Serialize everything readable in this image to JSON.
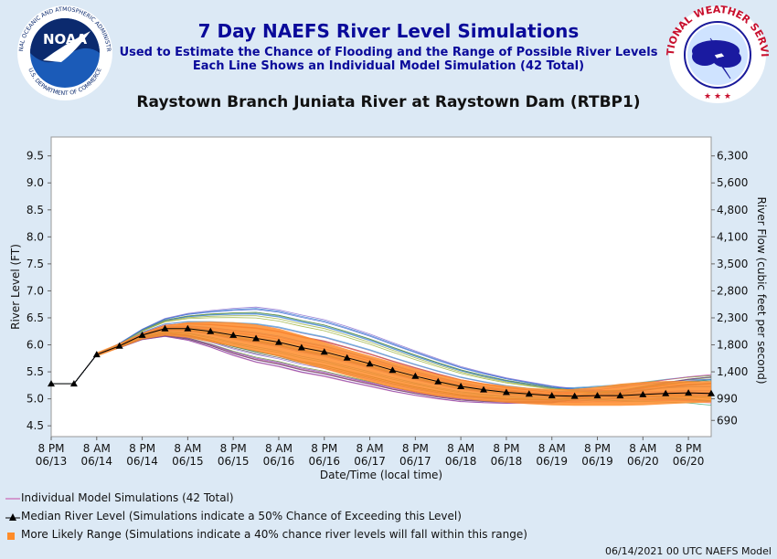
{
  "header": {
    "title": "7 Day NAEFS River Level Simulations",
    "subtitle1": "Used to Estimate the Chance of Flooding and the Range of Possible River Levels",
    "subtitle2": "Each Line Shows an Individual Model Simulation (42 Total)",
    "station": "Raystown Branch Juniata River at Raystown Dam (RTBP1)"
  },
  "logos": {
    "noaa_text": "NOAA",
    "noaa_ring_top": "NATIONAL OCEANIC AND ATMOSPHERIC ADMINISTRATION",
    "noaa_ring_bottom": "U.S. DEPARTMENT OF COMMERCE",
    "nws_ring": "NATIONAL WEATHER SERVICE"
  },
  "legend": {
    "members": "Individual Model Simulations (42 Total)",
    "median": "Median River Level (Simulations indicate a 50% Chance of Exceeding this Level)",
    "range": "More Likely Range (Simulations indicate a 40% chance river levels will fall within this range)"
  },
  "footer": "06/14/2021 00 UTC NAEFS Model",
  "colors": {
    "range": "#ff8c2a",
    "median": "#000000",
    "title": "#0a0a9a",
    "background": "#dce9f5"
  },
  "chart_data": {
    "type": "line",
    "xlabel": "Date/Time (local time)",
    "ylabel": "River Level (FT)",
    "y2label": "River Flow (cubic feet per second)",
    "ylim": [
      4.3,
      9.85
    ],
    "yticks": [
      "4.5",
      "5.0",
      "5.5",
      "6.0",
      "6.5",
      "7.0",
      "7.5",
      "8.0",
      "8.5",
      "9.0",
      "9.5"
    ],
    "y2ticks": [
      {
        "stage": 4.6,
        "label": "690"
      },
      {
        "stage": 5.0,
        "label": "990"
      },
      {
        "stage": 5.5,
        "label": "1,400"
      },
      {
        "stage": 6.0,
        "label": "1,800"
      },
      {
        "stage": 6.5,
        "label": "2,300"
      },
      {
        "stage": 7.0,
        "label": "2,800"
      },
      {
        "stage": 7.5,
        "label": "3,500"
      },
      {
        "stage": 8.0,
        "label": "4,100"
      },
      {
        "stage": 8.5,
        "label": "4,800"
      },
      {
        "stage": 9.0,
        "label": "5,600"
      },
      {
        "stage": 9.5,
        "label": "6,300"
      }
    ],
    "xticks": [
      [
        "8 PM",
        "06/13"
      ],
      [
        "8 AM",
        "06/14"
      ],
      [
        "8 PM",
        "06/14"
      ],
      [
        "8 AM",
        "06/15"
      ],
      [
        "8 PM",
        "06/15"
      ],
      [
        "8 AM",
        "06/16"
      ],
      [
        "8 PM",
        "06/16"
      ],
      [
        "8 AM",
        "06/17"
      ],
      [
        "8 PM",
        "06/17"
      ],
      [
        "8 AM",
        "06/18"
      ],
      [
        "8 PM",
        "06/18"
      ],
      [
        "8 AM",
        "06/19"
      ],
      [
        "8 PM",
        "06/19"
      ],
      [
        "8 AM",
        "06/20"
      ],
      [
        "8 PM",
        "06/20"
      ]
    ],
    "xtick_hours": [
      0,
      12,
      24,
      36,
      48,
      60,
      72,
      84,
      96,
      108,
      120,
      132,
      144,
      156,
      168
    ],
    "x_range_hours": [
      0,
      174
    ],
    "median": {
      "hours": [
        0,
        6,
        12,
        18,
        24,
        30,
        36,
        42,
        48,
        54,
        60,
        66,
        72,
        78,
        84,
        90,
        96,
        102,
        108,
        114,
        120,
        126,
        132,
        138,
        144,
        150,
        156,
        162,
        168,
        174
      ],
      "values": [
        5.28,
        5.28,
        5.82,
        5.98,
        6.18,
        6.3,
        6.3,
        6.25,
        6.18,
        6.12,
        6.05,
        5.95,
        5.87,
        5.76,
        5.65,
        5.53,
        5.42,
        5.32,
        5.23,
        5.17,
        5.12,
        5.09,
        5.06,
        5.05,
        5.06,
        5.06,
        5.08,
        5.1,
        5.11,
        5.1
      ]
    },
    "range": {
      "hours": [
        12,
        18,
        24,
        30,
        36,
        42,
        48,
        54,
        60,
        66,
        72,
        78,
        84,
        90,
        96,
        102,
        108,
        114,
        120,
        126,
        132,
        138,
        144,
        150,
        156,
        162,
        168,
        174
      ],
      "upper": [
        5.86,
        6.03,
        6.22,
        6.36,
        6.42,
        6.43,
        6.42,
        6.38,
        6.3,
        6.18,
        6.05,
        5.92,
        5.8,
        5.68,
        5.56,
        5.45,
        5.36,
        5.29,
        5.24,
        5.2,
        5.18,
        5.18,
        5.22,
        5.28,
        5.31,
        5.33,
        5.33,
        5.32
      ],
      "lower": [
        5.78,
        5.94,
        6.1,
        6.17,
        6.13,
        6.05,
        5.97,
        5.88,
        5.78,
        5.66,
        5.55,
        5.43,
        5.32,
        5.21,
        5.12,
        5.05,
        5.0,
        4.96,
        4.93,
        4.9,
        4.88,
        4.87,
        4.87,
        4.87,
        4.88,
        4.9,
        4.92,
        4.93
      ]
    }
  }
}
